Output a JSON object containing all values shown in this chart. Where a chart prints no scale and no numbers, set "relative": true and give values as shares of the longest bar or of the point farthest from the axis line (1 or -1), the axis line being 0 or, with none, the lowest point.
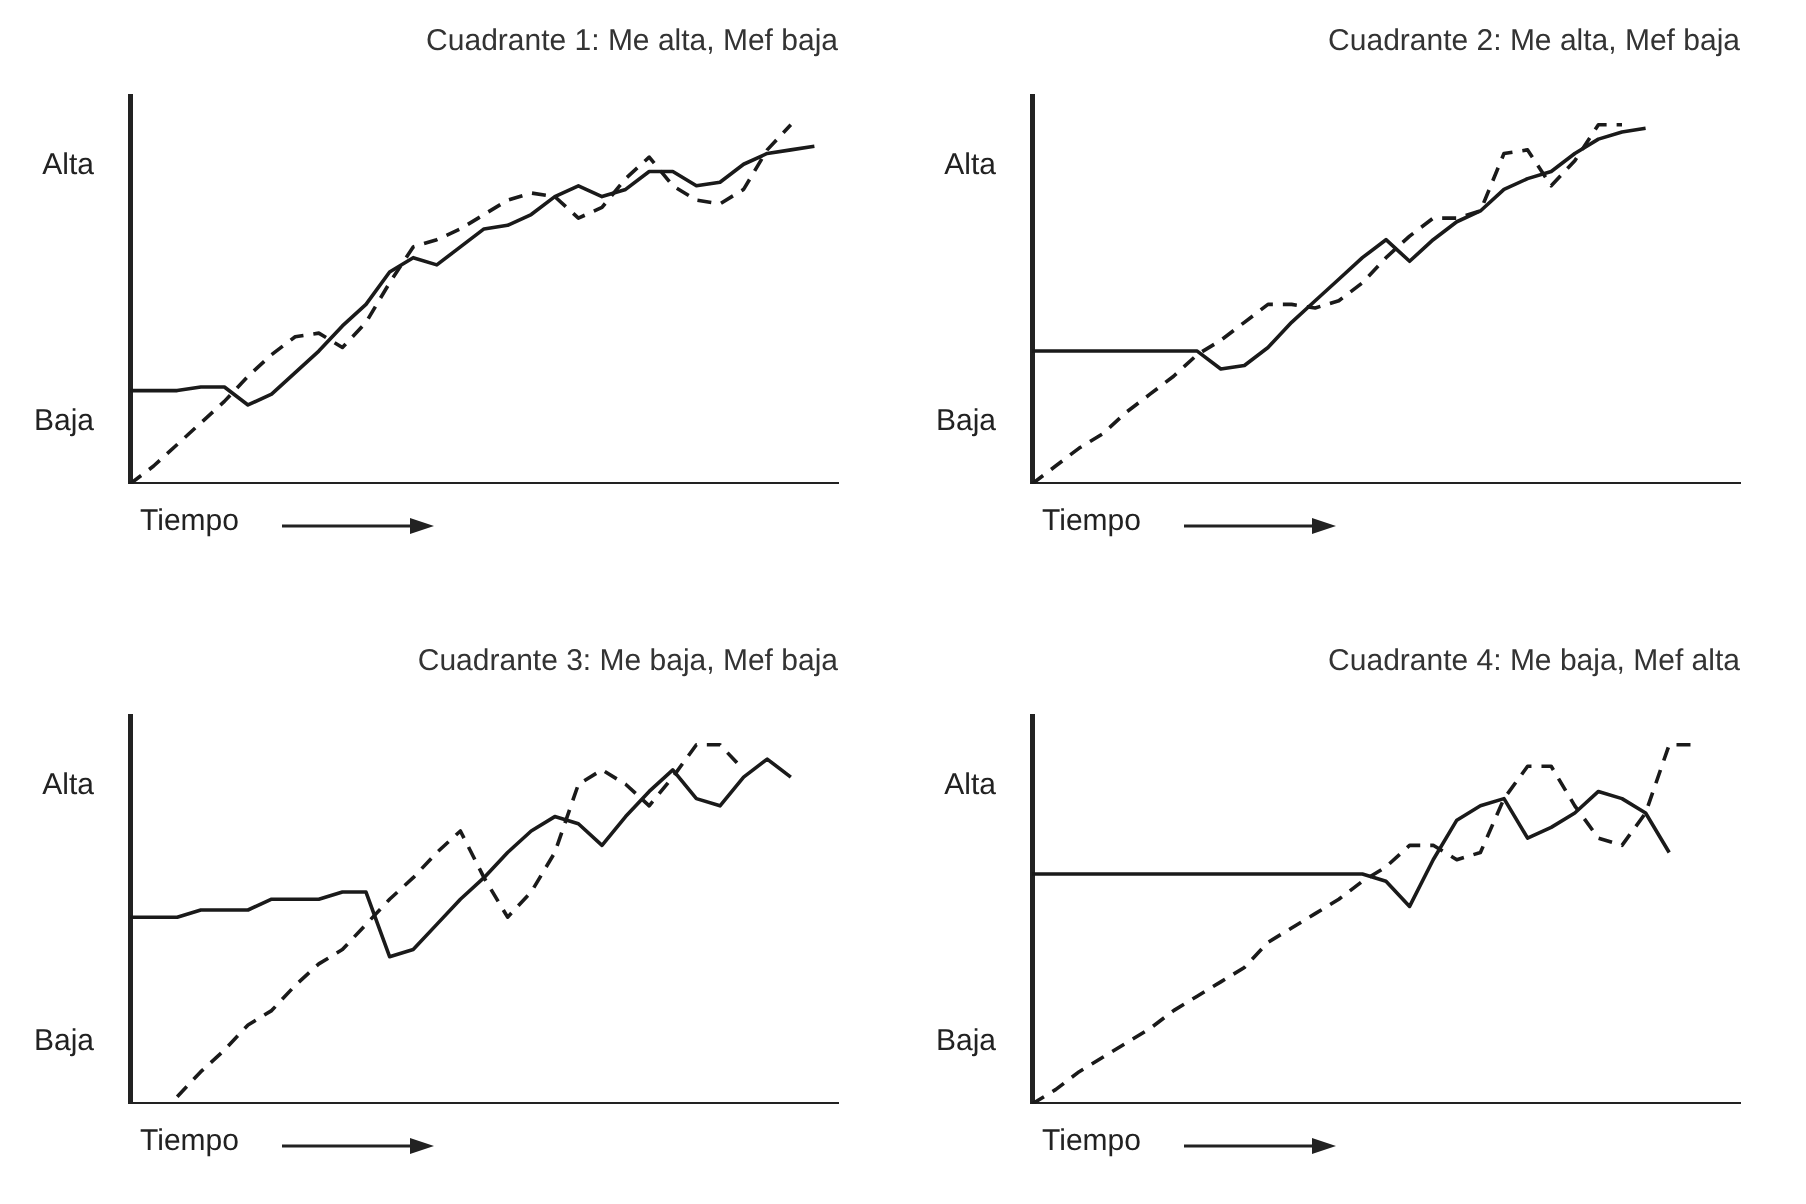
{
  "chart_data": [
    {
      "type": "line",
      "relative": true,
      "title": "Cuadrante 1: Me alta, Mef baja",
      "xlabel": "Tiempo",
      "annotations": [
        "Alta",
        "Baja"
      ],
      "categories": [
        null,
        null,
        null,
        null,
        null,
        null,
        null,
        null,
        null,
        null,
        null,
        null,
        null,
        null,
        null,
        null,
        null,
        null,
        null,
        null,
        null,
        null,
        null,
        null,
        null,
        null,
        null,
        null,
        null,
        null,
        null
      ],
      "tick_labels": false,
      "grid": false,
      "legend": false,
      "marker": "none",
      "series": [
        {
          "color": "#1a1a1a",
          "line_style": "solid",
          "values": [
            0.26,
            0.26,
            0.26,
            0.27,
            0.27,
            0.22,
            0.25,
            0.31,
            0.37,
            0.44,
            0.5,
            0.59,
            0.63,
            0.61,
            0.66,
            0.71,
            0.72,
            0.75,
            0.8,
            0.83,
            0.8,
            0.82,
            0.87,
            0.87,
            0.83,
            0.84,
            0.89,
            0.92,
            0.93,
            0.94,
            null
          ]
        },
        {
          "color": "#1a1a1a",
          "line_style": "dashed",
          "values": [
            0,
            0.05,
            0.11,
            0.17,
            0.23,
            0.3,
            0.36,
            0.41,
            0.42,
            0.38,
            0.45,
            0.56,
            0.66,
            0.68,
            0.71,
            0.75,
            0.79,
            0.81,
            0.8,
            0.74,
            0.77,
            0.85,
            0.91,
            0.83,
            0.79,
            0.78,
            0.82,
            0.93,
            1,
            null,
            null
          ]
        }
      ]
    },
    {
      "type": "line",
      "relative": true,
      "title": "Cuadrante 2: Me alta, Mef baja",
      "xlabel": "Tiempo",
      "annotations": [
        "Alta",
        "Baja"
      ],
      "categories": [
        null,
        null,
        null,
        null,
        null,
        null,
        null,
        null,
        null,
        null,
        null,
        null,
        null,
        null,
        null,
        null,
        null,
        null,
        null,
        null,
        null,
        null,
        null,
        null,
        null,
        null,
        null,
        null,
        null,
        null,
        null
      ],
      "tick_labels": false,
      "grid": false,
      "legend": false,
      "marker": "none",
      "series": [
        {
          "color": "#1a1a1a",
          "line_style": "solid",
          "values": [
            0.37,
            0.37,
            0.37,
            0.37,
            0.37,
            0.37,
            0.37,
            0.37,
            0.32,
            0.33,
            0.38,
            0.45,
            0.51,
            0.57,
            0.63,
            0.68,
            0.62,
            0.68,
            0.73,
            0.76,
            0.82,
            0.85,
            0.87,
            0.92,
            0.96,
            0.98,
            0.99,
            null,
            null,
            null,
            null
          ]
        },
        {
          "color": "#1a1a1a",
          "line_style": "dashed",
          "values": [
            0,
            0.05,
            0.1,
            0.14,
            0.2,
            0.25,
            0.3,
            0.36,
            0.4,
            0.45,
            0.5,
            0.5,
            0.49,
            0.51,
            0.56,
            0.63,
            0.69,
            0.74,
            0.74,
            0.76,
            0.92,
            0.93,
            0.83,
            0.9,
            1,
            1,
            null,
            null,
            null,
            null,
            null
          ]
        }
      ]
    },
    {
      "type": "line",
      "relative": true,
      "title": "Cuadrante 3: Me baja, Mef baja",
      "xlabel": "Tiempo",
      "annotations": [
        "Alta",
        "Baja"
      ],
      "categories": [
        null,
        null,
        null,
        null,
        null,
        null,
        null,
        null,
        null,
        null,
        null,
        null,
        null,
        null,
        null,
        null,
        null,
        null,
        null,
        null,
        null,
        null,
        null,
        null,
        null,
        null,
        null,
        null,
        null,
        null,
        null
      ],
      "tick_labels": false,
      "grid": false,
      "legend": false,
      "marker": "none",
      "series": [
        {
          "color": "#1a1a1a",
          "line_style": "solid",
          "values": [
            0.52,
            0.52,
            0.52,
            0.54,
            0.54,
            0.54,
            0.57,
            0.57,
            0.57,
            0.59,
            0.59,
            0.41,
            0.43,
            0.5,
            0.57,
            0.63,
            0.7,
            0.76,
            0.8,
            0.78,
            0.72,
            0.8,
            0.87,
            0.93,
            0.85,
            0.83,
            0.91,
            0.96,
            0.91,
            null,
            null
          ]
        },
        {
          "color": "#1a1a1a",
          "line_style": "dashed",
          "values": [
            null,
            null,
            0.02,
            0.09,
            0.15,
            0.22,
            0.26,
            0.33,
            0.39,
            0.43,
            0.5,
            0.57,
            0.63,
            0.7,
            0.76,
            0.63,
            0.52,
            0.59,
            0.7,
            0.89,
            0.93,
            0.89,
            0.83,
            0.91,
            1,
            1,
            0.93,
            null,
            null,
            null,
            null
          ]
        }
      ]
    },
    {
      "type": "line",
      "relative": true,
      "title": "Cuadrante 4: Me baja, Mef alta",
      "xlabel": "Tiempo",
      "annotations": [
        "Alta",
        "Baja"
      ],
      "categories": [
        null,
        null,
        null,
        null,
        null,
        null,
        null,
        null,
        null,
        null,
        null,
        null,
        null,
        null,
        null,
        null,
        null,
        null,
        null,
        null,
        null,
        null,
        null,
        null,
        null,
        null,
        null,
        null,
        null,
        null,
        null
      ],
      "tick_labels": false,
      "grid": false,
      "legend": false,
      "marker": "none",
      "series": [
        {
          "color": "#1a1a1a",
          "line_style": "solid",
          "values": [
            0.64,
            0.64,
            0.64,
            0.64,
            0.64,
            0.64,
            0.64,
            0.64,
            0.64,
            0.64,
            0.64,
            0.64,
            0.64,
            0.64,
            0.64,
            0.62,
            0.55,
            0.68,
            0.79,
            0.83,
            0.85,
            0.74,
            0.77,
            0.81,
            0.87,
            0.85,
            0.81,
            0.7,
            null,
            null,
            null
          ]
        },
        {
          "color": "#1a1a1a",
          "line_style": "dashed",
          "values": [
            0,
            0.04,
            0.09,
            0.13,
            0.17,
            0.21,
            0.26,
            0.3,
            0.34,
            0.38,
            0.45,
            0.49,
            0.53,
            0.57,
            0.62,
            0.66,
            0.72,
            0.72,
            0.68,
            0.7,
            0.85,
            0.94,
            0.94,
            0.83,
            0.74,
            0.72,
            0.81,
            1,
            1,
            null,
            null
          ]
        }
      ]
    }
  ]
}
